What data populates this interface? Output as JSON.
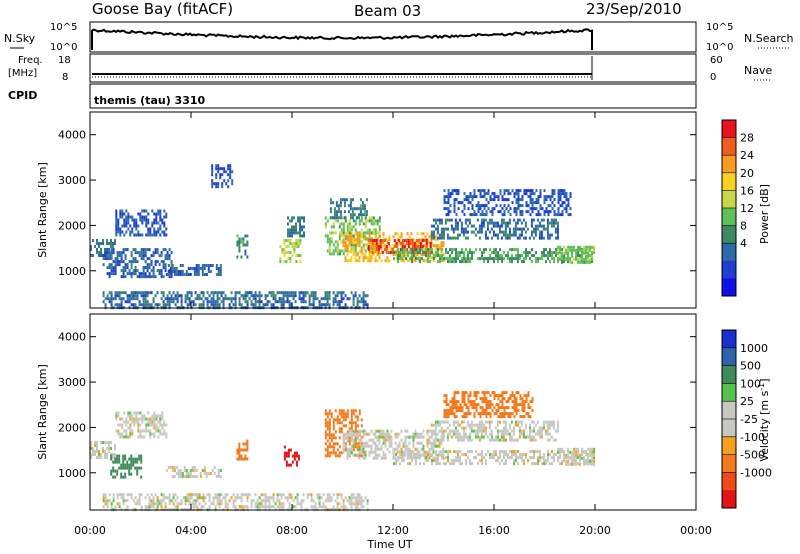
{
  "header": {
    "station": "Goose Bay (fitACF)",
    "beam": "Beam 03",
    "date": "23/Sep/2010"
  },
  "panels": {
    "nsky": {
      "label": "N.Sky",
      "right_label": "N.Search",
      "ticks_left": [
        "10^5",
        "10^0"
      ],
      "ticks_right": [
        "10^5",
        "10^0"
      ]
    },
    "freq": {
      "label_line1": "Freq.",
      "label_line2": "[MHz]",
      "right_label": "Nave",
      "ticks_left": [
        "18",
        "8"
      ],
      "ticks_right": [
        "60",
        "0"
      ]
    },
    "cpid": {
      "label": "CPID",
      "program": "themis (tau) 3310"
    }
  },
  "chart_data": [
    {
      "type": "heatmap",
      "panel": "power",
      "xlabel": "",
      "ylabel": "Slant Range [km]",
      "x_range_hours": [
        0,
        24
      ],
      "ylim": [
        180,
        4500
      ],
      "yticks": [
        "4000",
        "3000",
        "2000",
        "1000"
      ],
      "colorbar": {
        "label": "Power [dB]",
        "ticks": [
          "28",
          "24",
          "20",
          "16",
          "12",
          "8",
          "4"
        ],
        "colors": [
          "#e8141a",
          "#f05c1c",
          "#f79c1e",
          "#fad21d",
          "#c8d64a",
          "#5fbf5a",
          "#3d8a63",
          "#2c6aa8",
          "#1f3fd0",
          "#1010e6"
        ]
      },
      "regions": [
        {
          "t": [
            0.0,
            1.0
          ],
          "r": [
            1350,
            1700
          ],
          "v": 8
        },
        {
          "t": [
            0.5,
            3.2
          ],
          "r": [
            850,
            1500
          ],
          "v": 6
        },
        {
          "t": [
            1.0,
            3.0
          ],
          "r": [
            1800,
            2350
          ],
          "v": 5
        },
        {
          "t": [
            3.0,
            5.2
          ],
          "r": [
            900,
            1150
          ],
          "v": 6
        },
        {
          "t": [
            4.8,
            5.6
          ],
          "r": [
            2850,
            3350
          ],
          "v": 5
        },
        {
          "t": [
            5.8,
            6.2
          ],
          "r": [
            1300,
            1800
          ],
          "v": 9
        },
        {
          "t": [
            7.5,
            8.3
          ],
          "r": [
            1200,
            1700
          ],
          "v": 16
        },
        {
          "t": [
            7.8,
            8.5
          ],
          "r": [
            1800,
            2200
          ],
          "v": 8
        },
        {
          "t": [
            0.5,
            11.0
          ],
          "r": [
            180,
            550
          ],
          "v": 7
        },
        {
          "t": [
            9.3,
            11.5
          ],
          "r": [
            1400,
            2200
          ],
          "v": 14
        },
        {
          "t": [
            9.5,
            11.0
          ],
          "r": [
            2200,
            2600
          ],
          "v": 9
        },
        {
          "t": [
            10.0,
            14.0
          ],
          "r": [
            1250,
            1850
          ],
          "v": 22
        },
        {
          "t": [
            11.0,
            13.5
          ],
          "r": [
            1400,
            1700
          ],
          "v": 28
        },
        {
          "t": [
            12.0,
            20.0
          ],
          "r": [
            1200,
            1500
          ],
          "v": 12
        },
        {
          "t": [
            13.5,
            18.5
          ],
          "r": [
            1750,
            2150
          ],
          "v": 7
        },
        {
          "t": [
            14.0,
            19.0
          ],
          "r": [
            2250,
            2800
          ],
          "v": 5
        },
        {
          "t": [
            18.5,
            20.0
          ],
          "r": [
            1200,
            1550
          ],
          "v": 14
        }
      ]
    },
    {
      "type": "heatmap",
      "panel": "velocity",
      "xlabel": "Time UT",
      "ylabel": "Slant Range [km]",
      "x_range_hours": [
        0,
        24
      ],
      "xticks": [
        "00:00",
        "04:00",
        "08:00",
        "12:00",
        "16:00",
        "20:00",
        "00:00"
      ],
      "ylim": [
        180,
        4500
      ],
      "yticks": [
        "4000",
        "3000",
        "2000",
        "1000"
      ],
      "colorbar": {
        "label": "Velocity [m s^-1]",
        "ticks": [
          "1000",
          "500",
          "100",
          "25",
          "-25",
          "-100",
          "-500",
          "-1000"
        ],
        "colors": [
          "#1a2fd0",
          "#2e63a8",
          "#3f8b5a",
          "#59c44d",
          "#c8c8c2",
          "#c8c8c2",
          "#f2a21c",
          "#f4781c",
          "#f04a1a",
          "#e01414"
        ]
      },
      "regions": [
        {
          "t": [
            0.0,
            1.0
          ],
          "r": [
            1350,
            1700
          ],
          "v": 0
        },
        {
          "t": [
            0.8,
            2.0
          ],
          "r": [
            900,
            1400
          ],
          "v": 150
        },
        {
          "t": [
            1.0,
            3.0
          ],
          "r": [
            1800,
            2350
          ],
          "v": 0
        },
        {
          "t": [
            3.0,
            5.2
          ],
          "r": [
            900,
            1150
          ],
          "v": 0
        },
        {
          "t": [
            5.8,
            6.2
          ],
          "r": [
            1300,
            1800
          ],
          "v": -300
        },
        {
          "t": [
            7.6,
            8.3
          ],
          "r": [
            1200,
            1600
          ],
          "v": -600
        },
        {
          "t": [
            0.5,
            11.0
          ],
          "r": [
            180,
            550
          ],
          "v": 0
        },
        {
          "t": [
            9.3,
            10.8
          ],
          "r": [
            1400,
            2400
          ],
          "v": -300
        },
        {
          "t": [
            10.0,
            14.0
          ],
          "r": [
            1300,
            1950
          ],
          "v": 0
        },
        {
          "t": [
            12.0,
            20.0
          ],
          "r": [
            1200,
            1500
          ],
          "v": 0
        },
        {
          "t": [
            13.5,
            18.5
          ],
          "r": [
            1750,
            2150
          ],
          "v": 0
        },
        {
          "t": [
            14.0,
            17.5
          ],
          "r": [
            2250,
            2800
          ],
          "v": -200
        },
        {
          "t": [
            18.5,
            20.0
          ],
          "r": [
            1200,
            1550
          ],
          "v": 0
        }
      ]
    }
  ]
}
